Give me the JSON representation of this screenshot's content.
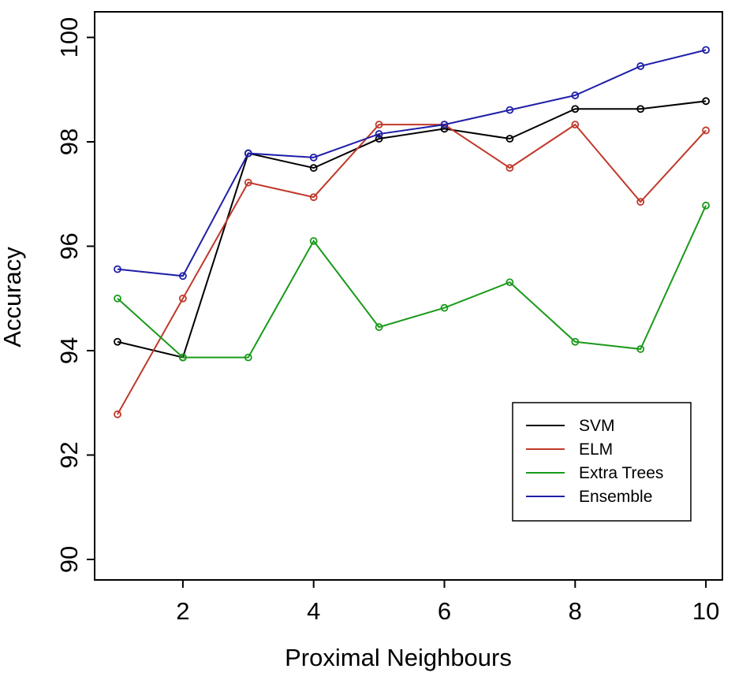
{
  "chart_data": {
    "type": "line",
    "xlabel": "Proximal Neighbours",
    "ylabel": "Accuracy",
    "x": [
      1,
      2,
      3,
      4,
      5,
      6,
      7,
      8,
      9,
      10
    ],
    "xlim": [
      1,
      10
    ],
    "ylim": [
      90,
      100
    ],
    "xticks": [
      2,
      4,
      6,
      8,
      10
    ],
    "yticks": [
      90,
      92,
      94,
      96,
      98,
      100
    ],
    "grid": false,
    "legend_position": "bottom-right",
    "markers": "open-circle",
    "series": [
      {
        "name": "SVM",
        "color": "#000000",
        "values": [
          94.17,
          93.87,
          97.78,
          97.5,
          98.06,
          98.25,
          98.06,
          98.63,
          98.63,
          98.78
        ]
      },
      {
        "name": "ELM",
        "color": "#c0392b",
        "values": [
          92.78,
          95.0,
          97.22,
          96.94,
          98.33,
          98.33,
          97.5,
          98.33,
          96.85,
          98.22
        ]
      },
      {
        "name": "Extra Trees",
        "color": "#1a9a1a",
        "values": [
          95.0,
          93.87,
          93.87,
          96.1,
          94.45,
          94.82,
          95.31,
          94.17,
          94.03,
          96.78
        ]
      },
      {
        "name": "Ensemble",
        "color": "#1f1fa8",
        "values": [
          95.56,
          95.43,
          97.78,
          97.7,
          98.15,
          98.33,
          98.61,
          98.89,
          99.45,
          99.76
        ]
      }
    ]
  }
}
